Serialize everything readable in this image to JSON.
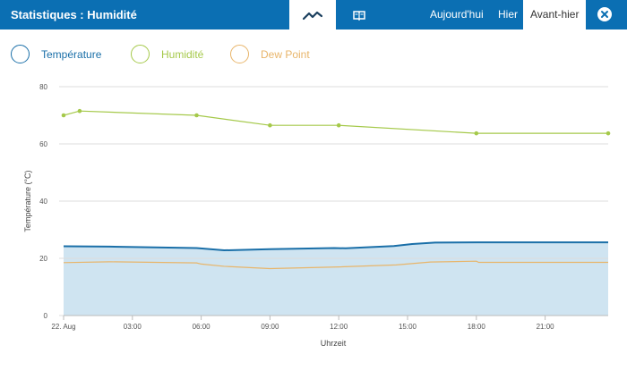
{
  "header": {
    "title": "Statistiques : Humidité",
    "view_tabs": [
      {
        "icon": "line-chart-icon",
        "active": true
      },
      {
        "icon": "book-icon",
        "active": false
      }
    ],
    "day_tabs": [
      {
        "label": "Aujourd'hui",
        "active": false
      },
      {
        "label": "Hier",
        "active": false
      },
      {
        "label": "Avant-hier",
        "active": true
      }
    ],
    "close_icon": "close-icon"
  },
  "legend": [
    {
      "label": "Température",
      "color": "#1a6fa8"
    },
    {
      "label": "Humidité",
      "color": "#a5c94a"
    },
    {
      "label": "Dew Point",
      "color": "#e8b56a"
    }
  ],
  "chart_data": {
    "type": "line",
    "xlabel": "Uhrzeit",
    "ylabel": "Température (°C)",
    "ylim": [
      0,
      80
    ],
    "yticks": [
      0,
      20,
      40,
      60,
      80
    ],
    "xlim": [
      0,
      23.75
    ],
    "xticks": [
      {
        "x": 0,
        "label": "22. Aug"
      },
      {
        "x": 3,
        "label": "03:00"
      },
      {
        "x": 6,
        "label": "06:00"
      },
      {
        "x": 9,
        "label": "09:00"
      },
      {
        "x": 12,
        "label": "12:00"
      },
      {
        "x": 15,
        "label": "15:00"
      },
      {
        "x": 18,
        "label": "18:00"
      },
      {
        "x": 21,
        "label": "21:00"
      }
    ],
    "grid": true,
    "series": [
      {
        "name": "Température",
        "color": "#1a6fa8",
        "fill": "#cfe4f1",
        "markers": false,
        "points": [
          [
            0,
            24.2
          ],
          [
            2,
            24.1
          ],
          [
            5.8,
            23.6
          ],
          [
            7,
            22.8
          ],
          [
            9,
            23.2
          ],
          [
            11.8,
            23.6
          ],
          [
            12.3,
            23.5
          ],
          [
            14.4,
            24.3
          ],
          [
            15.2,
            25
          ],
          [
            16.2,
            25.5
          ],
          [
            18,
            25.6
          ],
          [
            23.75,
            25.6
          ]
        ]
      },
      {
        "name": "Humidité",
        "color": "#a5c94a",
        "markers": true,
        "points": [
          [
            0,
            70
          ],
          [
            0.7,
            71.5
          ],
          [
            5.8,
            70
          ],
          [
            9,
            66.5
          ],
          [
            12,
            66.5
          ],
          [
            18,
            63.7
          ],
          [
            23.75,
            63.7
          ]
        ]
      },
      {
        "name": "Dew Point",
        "color": "#e8b56a",
        "markers": false,
        "points": [
          [
            0,
            18.5
          ],
          [
            2,
            18.8
          ],
          [
            5.8,
            18.4
          ],
          [
            6,
            18
          ],
          [
            7,
            17.2
          ],
          [
            9,
            16.4
          ],
          [
            12,
            17
          ],
          [
            14.5,
            17.7
          ],
          [
            16,
            18.7
          ],
          [
            18,
            19
          ],
          [
            18.1,
            18.6
          ],
          [
            23.75,
            18.6
          ]
        ]
      }
    ]
  }
}
